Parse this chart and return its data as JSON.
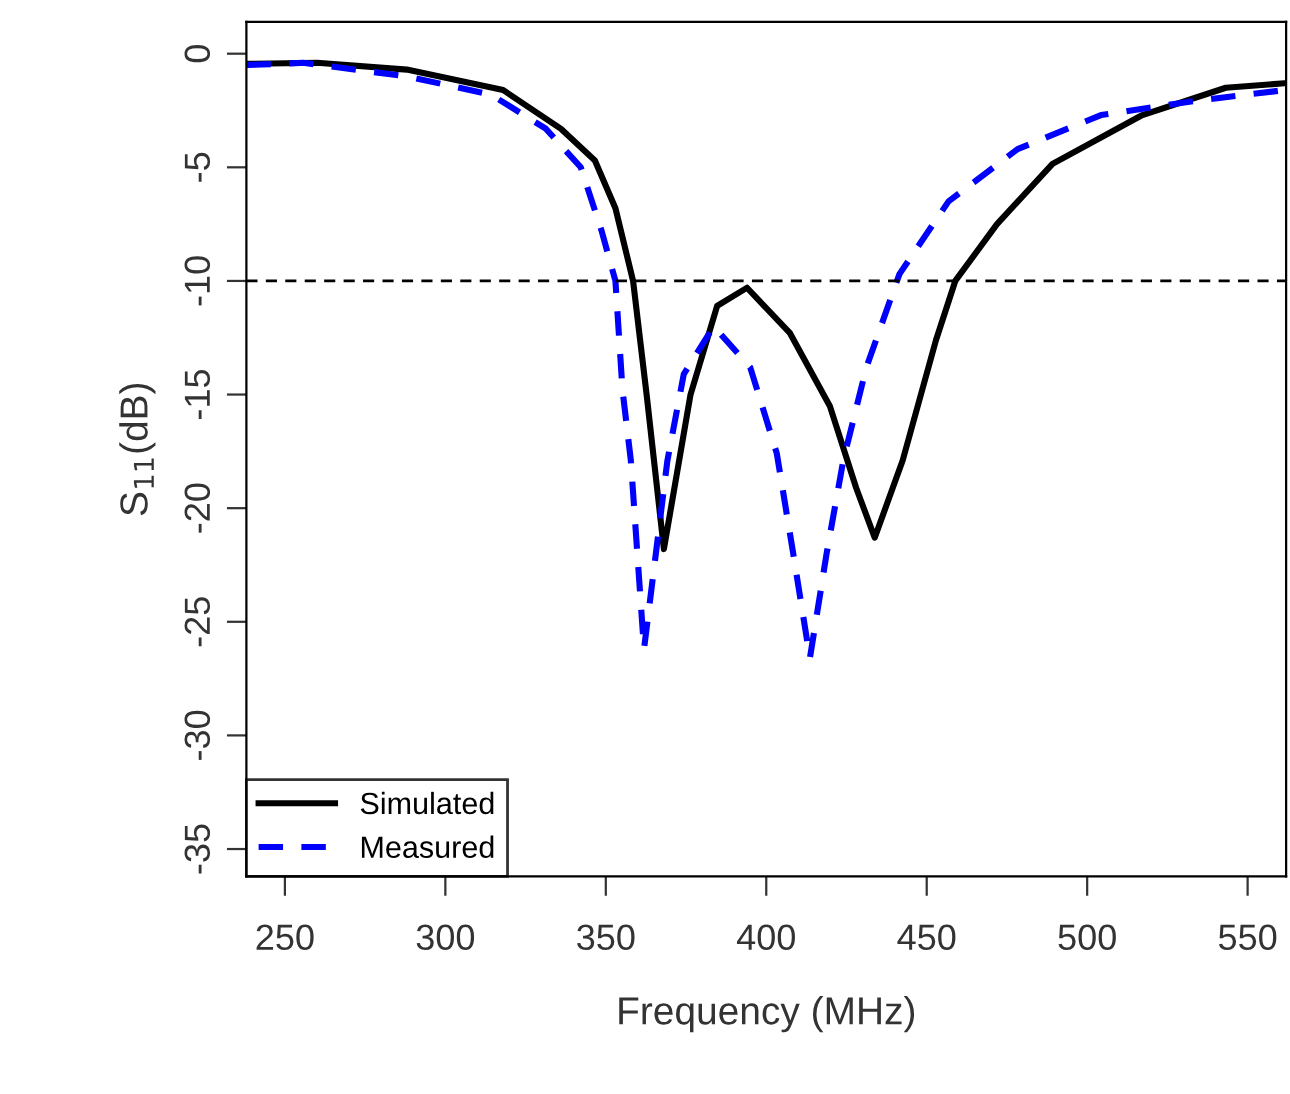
{
  "chart_data": {
    "type": "line",
    "xlabel": "Frequency (MHz)",
    "ylabel": "S$_{11}$(dB)",
    "xlim": [
      238,
      562
    ],
    "xticks": [
      250,
      300,
      350,
      400,
      450,
      500,
      550
    ],
    "ylim": [
      -36.2,
      1.4
    ],
    "yticks": [
      0,
      -5,
      -10,
      -15,
      -20,
      -25,
      -30,
      -35
    ],
    "grid": false,
    "legend": "bottom left",
    "ref_lines": [
      {
        "axis": "y",
        "value": -10,
        "color": "#000000",
        "line_style": "dashed"
      }
    ],
    "series": [
      {
        "name": "Simulated",
        "color": "#000000",
        "line_style": "solid",
        "x": [
          238,
          260,
          288,
          318,
          336,
          346.6,
          353,
          358.5,
          362.8,
          368.1,
          376.4,
          384.7,
          394,
          407.4,
          419.8,
          428,
          433.8,
          442.5,
          452.9,
          458.9,
          471.9,
          489.2,
          517.2,
          543.2,
          561.5
        ],
        "values": [
          -0.45,
          -0.4,
          -0.7,
          -1.6,
          -3.3,
          -4.7,
          -6.8,
          -10,
          -15.1,
          -21.8,
          -15.0,
          -11.1,
          -10.3,
          -12.3,
          -15.5,
          -19.1,
          -21.3,
          -17.9,
          -12.6,
          -10,
          -7.5,
          -4.85,
          -2.7,
          -1.5,
          -1.3
        ]
      },
      {
        "name": "Measured",
        "color": "#0000ff",
        "line_style": "dashed",
        "x": [
          238,
          255.7,
          288,
          314.2,
          331.3,
          342.2,
          348.7,
          353,
          355.2,
          357.8,
          361.9,
          369.2,
          374.3,
          383.6,
          395,
          403.3,
          408.4,
          413.6,
          418.8,
          424,
          431.2,
          441.5,
          456.8,
          478.3,
          504.3,
          532.4,
          561.5
        ],
        "values": [
          -0.5,
          -0.4,
          -1.0,
          -1.8,
          -3.3,
          -5.0,
          -7.8,
          -10,
          -14.8,
          -17.9,
          -26.2,
          -17.9,
          -14.1,
          -12.0,
          -13.8,
          -17.6,
          -22.0,
          -26.6,
          -22.0,
          -17.9,
          -13.8,
          -9.7,
          -6.5,
          -4.2,
          -2.7,
          -2.1,
          -1.6
        ]
      }
    ]
  }
}
